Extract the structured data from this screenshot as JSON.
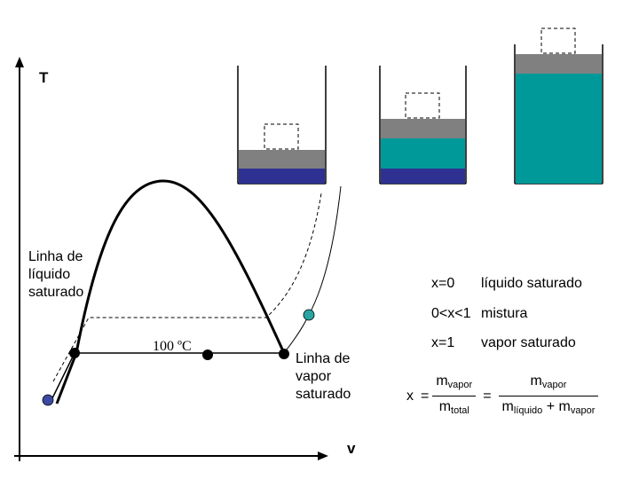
{
  "axes": {
    "y_label": "T",
    "x_label": "v"
  },
  "labels": {
    "liquid_line": [
      "Linha de",
      "líquido",
      "saturado"
    ],
    "vapor_line": [
      "Linha de",
      "vapor",
      "saturado"
    ],
    "isotherm": "100 ºC"
  },
  "legend": [
    {
      "key": "x=0",
      "desc": "líquido saturado"
    },
    {
      "key": "0<x<1",
      "desc": "mistura"
    },
    {
      "key": "x=1",
      "desc": "vapor saturado"
    }
  ],
  "formula": {
    "lhs": "x",
    "eq": "=",
    "m": "m",
    "vapor": "vapor",
    "total": "total",
    "liquido": "líquido",
    "plus": "+"
  },
  "colors": {
    "water_liquid": "#2e3192",
    "water_vapor": "#009999",
    "piston": "#808080",
    "point_liquid": "#3b4aa3",
    "point_vapor": "#2aa3a3"
  }
}
